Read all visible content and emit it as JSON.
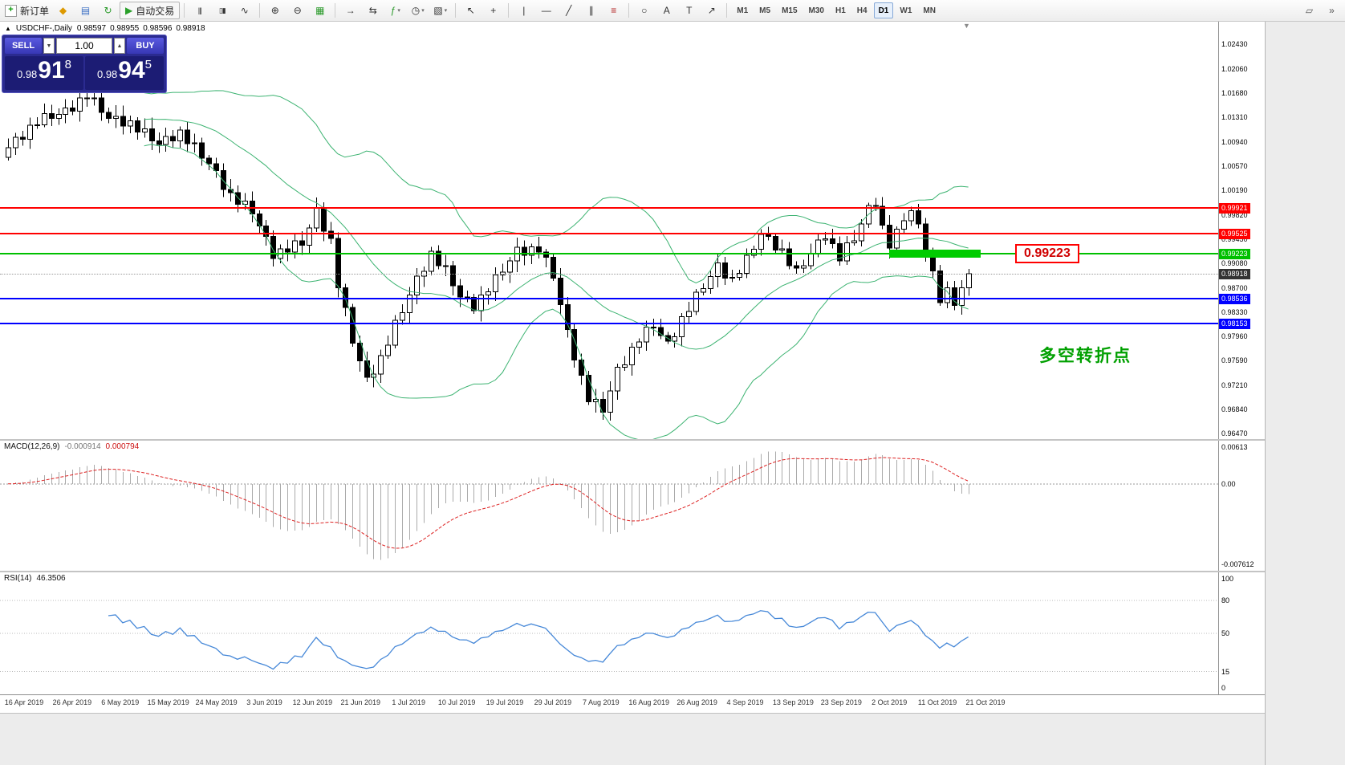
{
  "toolbar": {
    "new_order_label": "新订单",
    "autotrading_label": "自动交易",
    "timeframes": [
      "M1",
      "M5",
      "M15",
      "M30",
      "H1",
      "H4",
      "D1",
      "W1",
      "MN"
    ],
    "active_timeframe": "D1",
    "items": [
      {
        "type": "doc-button",
        "name": "new-order-button",
        "glyph": "+",
        "label": "新订单"
      },
      {
        "type": "icon",
        "name": "metaeditor-icon",
        "glyph": "◆",
        "color": "#dd9900"
      },
      {
        "type": "icon",
        "name": "profiles-icon",
        "glyph": "▤",
        "color": "#3b6fc4"
      },
      {
        "type": "icon",
        "name": "refresh-icon",
        "glyph": "↻",
        "color": "#2a9a2a"
      },
      {
        "type": "toggle-button",
        "name": "autotrading-button",
        "glyph": "▶",
        "color": "#2aa02a",
        "label": "自动交易"
      },
      {
        "type": "sep"
      },
      {
        "type": "icon",
        "name": "bar-chart-icon",
        "glyph": "|||",
        "color": "#333"
      },
      {
        "type": "icon",
        "name": "candlesticks-icon",
        "glyph": "▯▮",
        "color": "#333"
      },
      {
        "type": "icon",
        "name": "line-chart-icon",
        "glyph": "∿",
        "color": "#333"
      },
      {
        "type": "sep"
      },
      {
        "type": "icon",
        "name": "zoom-in-icon",
        "glyph": "⊕",
        "color": "#333"
      },
      {
        "type": "icon",
        "name": "zoom-out-icon",
        "glyph": "⊖",
        "color": "#333"
      },
      {
        "type": "icon",
        "name": "tile-windows-icon",
        "glyph": "▦",
        "color": "#2a9a2a"
      },
      {
        "type": "sep"
      },
      {
        "type": "icon",
        "name": "auto-scroll-icon",
        "glyph": "→",
        "color": "#333"
      },
      {
        "type": "icon",
        "name": "chart-shift-icon",
        "glyph": "⇆",
        "color": "#333"
      },
      {
        "type": "icon",
        "name": "indicators-icon",
        "glyph": "ƒ",
        "color": "#2a9a2a",
        "dropdown": true
      },
      {
        "type": "icon",
        "name": "periods-icon",
        "glyph": "◷",
        "color": "#333",
        "dropdown": true
      },
      {
        "type": "icon",
        "name": "templates-icon",
        "glyph": "▧",
        "color": "#333",
        "dropdown": true
      },
      {
        "type": "sep"
      },
      {
        "type": "icon",
        "name": "cursor-icon",
        "glyph": "↖",
        "color": "#333"
      },
      {
        "type": "icon",
        "name": "crosshair-icon",
        "glyph": "+",
        "color": "#333"
      },
      {
        "type": "sep"
      },
      {
        "type": "icon",
        "name": "vertical-line-icon",
        "glyph": "|",
        "color": "#333"
      },
      {
        "type": "icon",
        "name": "horizontal-line-icon",
        "glyph": "—",
        "color": "#333"
      },
      {
        "type": "icon",
        "name": "trendline-icon",
        "glyph": "╱",
        "color": "#333"
      },
      {
        "type": "icon",
        "name": "channel-icon",
        "glyph": "∥",
        "color": "#333"
      },
      {
        "type": "icon",
        "name": "fibonacci-icon",
        "glyph": "≡",
        "color": "#b22222"
      },
      {
        "type": "sep"
      },
      {
        "type": "icon",
        "name": "shapes-icon",
        "glyph": "○",
        "color": "#333"
      },
      {
        "type": "icon",
        "name": "text-icon",
        "glyph": "A",
        "color": "#333"
      },
      {
        "type": "icon",
        "name": "label-icon",
        "glyph": "T",
        "color": "#333"
      },
      {
        "type": "icon",
        "name": "arrows-icon",
        "glyph": "↗",
        "color": "#333"
      },
      {
        "type": "sep"
      },
      {
        "type": "timeframes"
      },
      {
        "type": "spacer"
      },
      {
        "type": "icon",
        "name": "panels-icon",
        "glyph": "▱",
        "color": "#555"
      },
      {
        "type": "icon",
        "name": "more-icon",
        "glyph": "»",
        "color": "#555"
      }
    ]
  },
  "chart": {
    "collapse_glyph": "▲",
    "shift_marker_glyph": "▼",
    "title": "USDCHF-,Daily",
    "ohlc": {
      "open": "0.98597",
      "high": "0.98955",
      "low": "0.98596",
      "close": "0.98918"
    },
    "order_panel": {
      "sell_label": "SELL",
      "buy_label": "BUY",
      "volume": "1.00",
      "spinner_down": "▼",
      "spinner_up": "▲",
      "sell_price": {
        "big_prefix": "0.98",
        "big": "91",
        "sup": "8"
      },
      "buy_price": {
        "big_prefix": "0.98",
        "big": "94",
        "sup": "5"
      }
    },
    "pTop": 1.0278,
    "pBottom": 0.9638,
    "price_scale": [
      "1.02430",
      "1.02060",
      "1.01680",
      "1.01310",
      "1.00940",
      "1.00570",
      "1.00190",
      "0.99820",
      "0.99450",
      "0.99080",
      "0.98700",
      "0.98330",
      "0.97960",
      "0.97590",
      "0.97210",
      "0.96840",
      "0.96470"
    ],
    "lines": [
      {
        "price": 0.99921,
        "label": "0.99921",
        "color": "#ff0000"
      },
      {
        "price": 0.99525,
        "label": "0.99525",
        "color": "#ff0000"
      },
      {
        "price": 0.99223,
        "label": "0.99223",
        "color": "#00c000"
      },
      {
        "price": 0.98536,
        "label": "0.98536",
        "color": "#0000ff"
      },
      {
        "price": 0.98153,
        "label": "0.98153",
        "color": "#0000ff"
      }
    ],
    "current_price": {
      "value": 0.98918,
      "label": "0.98918",
      "color": "#333333"
    },
    "annotations": {
      "price_callout": "0.99223",
      "note_text": "多空转折点",
      "note_color": "#00a000"
    }
  },
  "macd": {
    "label": "MACD(12,26,9)",
    "value_main": "-0.000914",
    "value_signal": "0.000794",
    "scale": {
      "top": "0.00613",
      "zero": "0.00",
      "bottom": "-0.007612"
    }
  },
  "rsi": {
    "label": "RSI(14)",
    "value": "46.3506",
    "levels": [
      "100",
      "80",
      "50",
      "15",
      "0"
    ],
    "level_values": [
      100,
      80,
      50,
      15,
      0
    ],
    "dotted_levels": [
      80,
      50,
      15
    ]
  },
  "time_axis": {
    "dates": [
      "16 Apr 2019",
      "26 Apr 2019",
      "6 May 2019",
      "15 May 2019",
      "24 May 2019",
      "3 Jun 2019",
      "12 Jun 2019",
      "21 Jun 2019",
      "1 Jul 2019",
      "10 Jul 2019",
      "19 Jul 2019",
      "29 Jul 2019",
      "7 Aug 2019",
      "16 Aug 2019",
      "26 Aug 2019",
      "4 Sep 2019",
      "13 Sep 2019",
      "23 Sep 2019",
      "2 Oct 2019",
      "11 Oct 2019",
      "21 Oct 2019"
    ]
  },
  "chart_data": {
    "type": "candlestick",
    "symbol": "USDCHF",
    "timeframe": "Daily",
    "closes": [
      1.0085,
      1.0101,
      1.0098,
      1.0119,
      1.012,
      1.0137,
      1.013,
      1.0136,
      1.0146,
      1.0141,
      1.0161,
      1.016,
      1.0161,
      1.0139,
      1.013,
      1.0133,
      1.0118,
      1.0126,
      1.0109,
      1.0114,
      1.0095,
      1.009,
      1.0102,
      1.0095,
      1.0112,
      1.0091,
      1.0092,
      1.0069,
      1.006,
      1.005,
      1.0021,
      1.0016,
      0.9998,
      1.0003,
      0.9983,
      0.9965,
      0.9949,
      0.9915,
      0.993,
      0.9925,
      0.9942,
      0.9935,
      0.9962,
      0.9992,
      0.9957,
      0.9946,
      0.987,
      0.984,
      0.9785,
      0.9758,
      0.9733,
      0.9738,
      0.9766,
      0.9782,
      0.982,
      0.9832,
      0.9859,
      0.9888,
      0.9895,
      0.9926,
      0.9904,
      0.9904,
      0.9873,
      0.9856,
      0.9855,
      0.9835,
      0.9859,
      0.9864,
      0.989,
      0.9894,
      0.9911,
      0.9932,
      0.992,
      0.9933,
      0.9925,
      0.9917,
      0.9885,
      0.9844,
      0.9806,
      0.9759,
      0.9736,
      0.9695,
      0.9699,
      0.9679,
      0.9712,
      0.9748,
      0.9752,
      0.9779,
      0.9787,
      0.981,
      0.9809,
      0.9797,
      0.9788,
      0.9795,
      0.9826,
      0.9834,
      0.9863,
      0.9869,
      0.9887,
      0.9908,
      0.9885,
      0.9886,
      0.9892,
      0.992,
      0.9929,
      0.9952,
      0.9949,
      0.9928,
      0.993,
      0.9904,
      0.99,
      0.9904,
      0.9922,
      0.9943,
      0.9945,
      0.9938,
      0.9911,
      0.9939,
      0.9942,
      0.9968,
      0.9996,
      0.9995,
      0.9966,
      0.9931,
      0.996,
      0.9973,
      0.9988,
      0.9968,
      0.9925,
      0.9896,
      0.9847,
      0.987,
      0.9843,
      0.987,
      0.98918
    ],
    "bollinger": {
      "period": 20,
      "deviation": 2,
      "color": "#3CB371"
    },
    "macd": {
      "fast": 12,
      "slow": 26,
      "signal": 9
    },
    "rsi_period": 14
  }
}
